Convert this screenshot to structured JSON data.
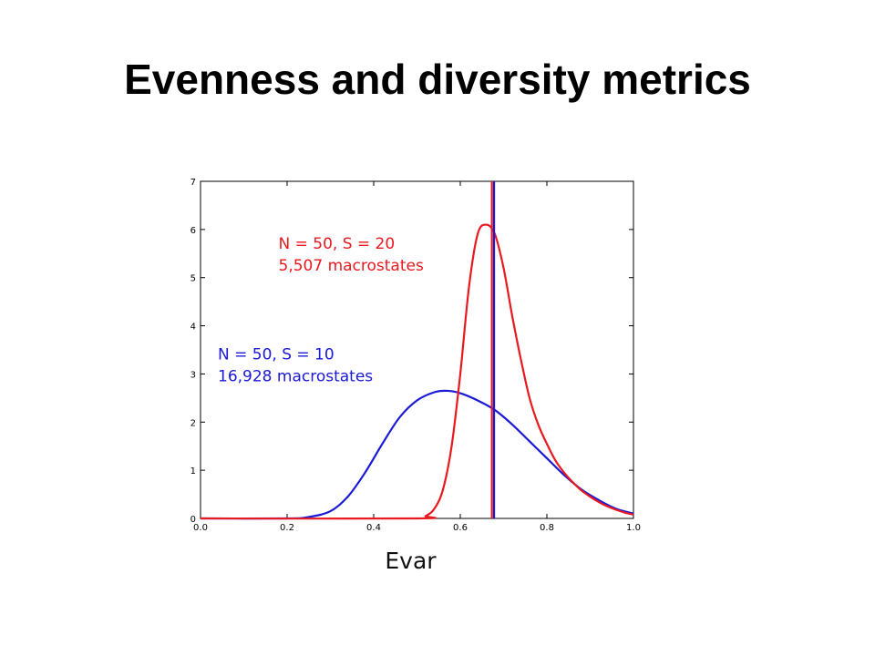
{
  "slide": {
    "title": "Evenness and diversity metrics"
  },
  "colors": {
    "red_series": "#e8191f",
    "blue_series": "#1a1ad6",
    "axes": "#000000"
  },
  "chart_data": {
    "type": "line",
    "title": "",
    "xlabel": "Evar",
    "ylabel": "",
    "xlim": [
      0.0,
      1.0
    ],
    "ylim": [
      0,
      7
    ],
    "x_ticks": [
      "0.0",
      "0.2",
      "0.4",
      "0.6",
      "0.8",
      "1.0"
    ],
    "y_ticks": [
      "0",
      "1",
      "2",
      "3",
      "4",
      "5",
      "6",
      "7"
    ],
    "grid": false,
    "series": [
      {
        "color": "#e8191f",
        "x": [
          0.0,
          0.5,
          0.52,
          0.54,
          0.56,
          0.58,
          0.6,
          0.62,
          0.64,
          0.66,
          0.68,
          0.7,
          0.72,
          0.74,
          0.76,
          0.78,
          0.8,
          0.82,
          0.84,
          0.86,
          0.88,
          0.9,
          0.92,
          0.94,
          0.96,
          0.98,
          1.0
        ],
        "y": [
          0.0,
          0.0,
          0.05,
          0.2,
          0.6,
          1.5,
          3.0,
          4.8,
          5.9,
          6.1,
          5.9,
          5.2,
          4.2,
          3.3,
          2.5,
          1.95,
          1.55,
          1.2,
          0.95,
          0.75,
          0.58,
          0.45,
          0.34,
          0.25,
          0.18,
          0.12,
          0.08
        ]
      },
      {
        "color": "#1a1ad6",
        "x": [
          0.0,
          0.2,
          0.25,
          0.3,
          0.34,
          0.38,
          0.42,
          0.46,
          0.5,
          0.54,
          0.57,
          0.6,
          0.64,
          0.68,
          0.72,
          0.76,
          0.8,
          0.84,
          0.88,
          0.92,
          0.96,
          1.0
        ],
        "y": [
          0.0,
          0.0,
          0.03,
          0.15,
          0.45,
          0.95,
          1.55,
          2.1,
          2.45,
          2.62,
          2.65,
          2.6,
          2.45,
          2.25,
          1.95,
          1.6,
          1.25,
          0.9,
          0.6,
          0.38,
          0.2,
          0.1
        ]
      }
    ],
    "vertical_lines": [
      {
        "x": 0.673,
        "color": "#e8191f"
      },
      {
        "x": 0.678,
        "color": "#1a1ad6"
      }
    ],
    "annotations": [
      {
        "lines": [
          "N = 50, S = 20",
          "5,507 macrostates"
        ],
        "color": "#e8191f",
        "x": 0.18,
        "y": 5.6
      },
      {
        "lines": [
          "N = 50, S = 10",
          "16,928 macrostates"
        ],
        "color": "#1a1ad6",
        "x": 0.04,
        "y": 3.3
      }
    ]
  }
}
